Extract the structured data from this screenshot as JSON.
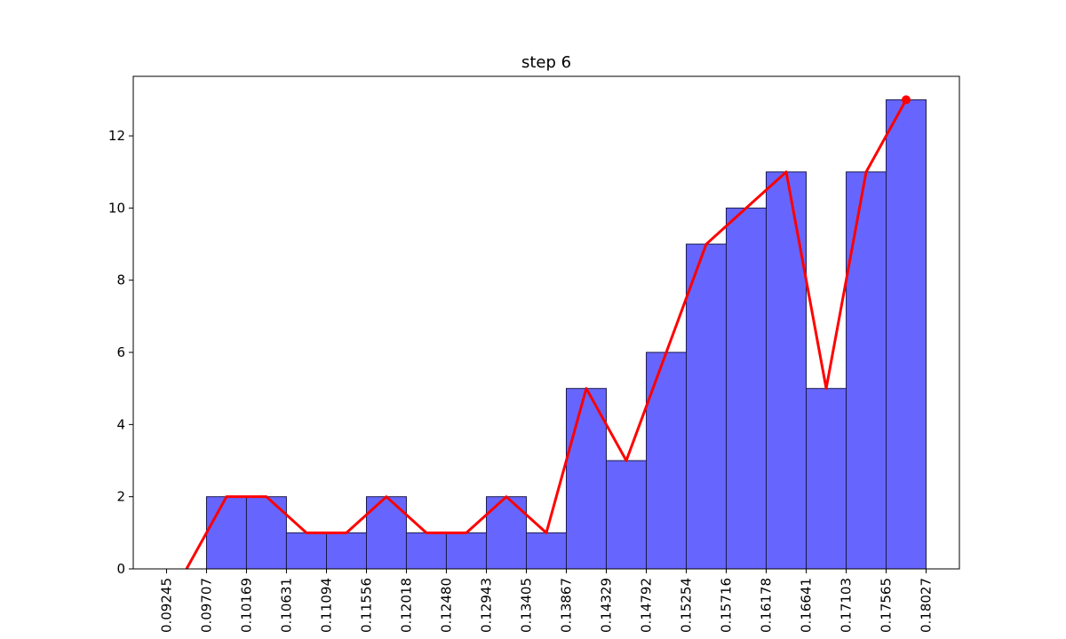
{
  "chart_data": {
    "type": "bar",
    "title": "step 6",
    "xlabel": "",
    "ylabel": "",
    "bin_edges": [
      0.09245,
      0.09707,
      0.10169,
      0.10631,
      0.11094,
      0.11556,
      0.12018,
      0.1248,
      0.12943,
      0.13405,
      0.13867,
      0.14329,
      0.14792,
      0.15254,
      0.15716,
      0.16178,
      0.16641,
      0.17103,
      0.17565,
      0.18027
    ],
    "x_tick_labels": [
      "0.09245",
      "0.09707",
      "0.10169",
      "0.10631",
      "0.11094",
      "0.11556",
      "0.12018",
      "0.12480",
      "0.12943",
      "0.13405",
      "0.13867",
      "0.14329",
      "0.14792",
      "0.15254",
      "0.15716",
      "0.16178",
      "0.16641",
      "0.17103",
      "0.17565",
      "0.18027"
    ],
    "values": [
      0,
      2,
      2,
      1,
      1,
      2,
      1,
      1,
      2,
      1,
      5,
      3,
      6,
      9,
      10,
      11,
      5,
      11,
      13
    ],
    "y_ticks": [
      0,
      2,
      4,
      6,
      8,
      10,
      12
    ],
    "y_tick_labels": [
      "0",
      "2",
      "4",
      "6",
      "8",
      "10",
      "12"
    ],
    "ylim": [
      0,
      13.65
    ],
    "xlim": [
      0.0886,
      0.18412
    ],
    "grid": false,
    "legend": "none",
    "series": [
      {
        "type": "bar",
        "values": [
          0,
          2,
          2,
          1,
          1,
          2,
          1,
          1,
          2,
          1,
          5,
          3,
          6,
          9,
          10,
          11,
          5,
          11,
          13
        ]
      },
      {
        "type": "line",
        "values": [
          0,
          2,
          2,
          1,
          1,
          2,
          1,
          1,
          2,
          1,
          5,
          3,
          6,
          9,
          10,
          11,
          5,
          11,
          13
        ],
        "marker_on_last": true
      }
    ],
    "colors": {
      "bar_fill": "#6666ff",
      "bar_edge": "#1a1a4d",
      "line": "#ff0000",
      "axes": "#000000"
    }
  }
}
